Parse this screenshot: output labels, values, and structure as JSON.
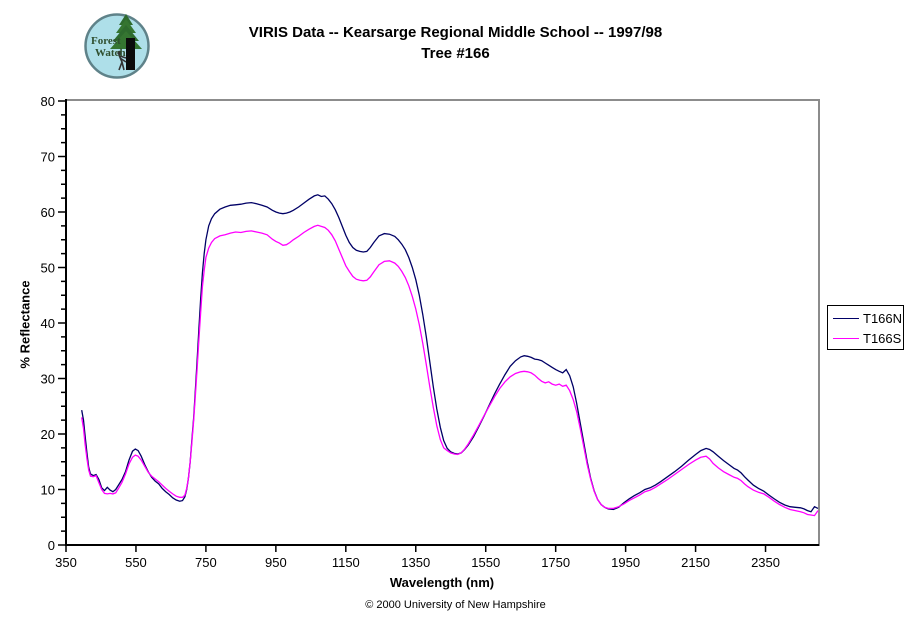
{
  "logo": {
    "line1": "Forest",
    "line2": "Watch"
  },
  "title": {
    "line1": "VIRIS Data -- Kearsarge Regional Middle School -- 1997/98",
    "line2": "Tree #166"
  },
  "footer": "© 2000 University of New Hampshire",
  "chart_data": {
    "type": "line",
    "title": "VIRIS Data -- Kearsarge Regional Middle School -- 1997/98  Tree #166",
    "xlabel": "Wavelength (nm)",
    "ylabel": "% Reflectance",
    "xlim": [
      350,
      2500
    ],
    "ylim": [
      0,
      80
    ],
    "xticks": [
      350,
      550,
      750,
      950,
      1150,
      1350,
      1550,
      1750,
      1950,
      2150,
      2350
    ],
    "yticks": [
      0,
      10,
      20,
      30,
      40,
      50,
      60,
      70,
      80
    ],
    "y_minor_step": 2.5,
    "grid": false,
    "legend_position": "right-outside",
    "colors": {
      "axis": "#000000",
      "border": "#8c8c8c"
    },
    "x": [
      395,
      400,
      405,
      410,
      415,
      420,
      428,
      436,
      444,
      452,
      460,
      468,
      476,
      484,
      492,
      500,
      510,
      520,
      530,
      540,
      548,
      556,
      565,
      575,
      585,
      595,
      605,
      615,
      625,
      635,
      645,
      655,
      665,
      675,
      683,
      690,
      695,
      700,
      705,
      710,
      715,
      720,
      725,
      730,
      735,
      740,
      745,
      750,
      758,
      766,
      775,
      790,
      805,
      820,
      835,
      850,
      865,
      880,
      895,
      910,
      925,
      940,
      950,
      960,
      970,
      980,
      990,
      1000,
      1015,
      1030,
      1045,
      1060,
      1070,
      1080,
      1090,
      1100,
      1110,
      1120,
      1130,
      1140,
      1150,
      1160,
      1170,
      1180,
      1190,
      1200,
      1210,
      1220,
      1230,
      1245,
      1260,
      1275,
      1290,
      1300,
      1310,
      1320,
      1330,
      1340,
      1350,
      1360,
      1370,
      1380,
      1390,
      1400,
      1410,
      1420,
      1430,
      1440,
      1450,
      1460,
      1470,
      1480,
      1490,
      1500,
      1515,
      1530,
      1545,
      1560,
      1575,
      1590,
      1605,
      1620,
      1635,
      1650,
      1660,
      1670,
      1680,
      1690,
      1700,
      1710,
      1720,
      1730,
      1740,
      1750,
      1760,
      1770,
      1780,
      1790,
      1800,
      1810,
      1820,
      1830,
      1840,
      1850,
      1860,
      1870,
      1880,
      1890,
      1900,
      1915,
      1930,
      1945,
      1960,
      1975,
      1990,
      2005,
      2020,
      2035,
      2050,
      2070,
      2090,
      2110,
      2130,
      2150,
      2165,
      2180,
      2190,
      2200,
      2215,
      2230,
      2245,
      2260,
      2270,
      2280,
      2290,
      2300,
      2315,
      2330,
      2345,
      2360,
      2375,
      2390,
      2405,
      2420,
      2435,
      2450,
      2460,
      2470,
      2480,
      2490,
      2500
    ],
    "series": [
      {
        "name": "T166N",
        "color": "#000066",
        "values": [
          24.3,
          22.5,
          19.5,
          16.5,
          14.0,
          12.8,
          12.5,
          12.7,
          11.8,
          10.3,
          9.8,
          10.4,
          9.9,
          9.6,
          10.0,
          10.8,
          11.8,
          13.2,
          15.3,
          16.9,
          17.3,
          17.0,
          16.0,
          14.5,
          13.2,
          12.2,
          11.5,
          11.0,
          10.2,
          9.6,
          9.1,
          8.5,
          8.1,
          7.9,
          8.0,
          8.7,
          10.0,
          12.0,
          15.0,
          19.0,
          23.0,
          28.0,
          33.5,
          39.0,
          44.5,
          49.0,
          52.5,
          55.0,
          57.5,
          58.8,
          59.7,
          60.5,
          60.9,
          61.2,
          61.3,
          61.4,
          61.6,
          61.7,
          61.5,
          61.2,
          60.9,
          60.3,
          60.0,
          59.8,
          59.7,
          59.8,
          60.0,
          60.3,
          60.9,
          61.6,
          62.3,
          62.9,
          63.1,
          62.8,
          62.9,
          62.3,
          61.5,
          60.4,
          59.0,
          57.4,
          55.8,
          54.5,
          53.6,
          53.1,
          52.9,
          52.8,
          52.9,
          53.6,
          54.5,
          55.7,
          56.1,
          56.0,
          55.6,
          55.0,
          54.2,
          53.2,
          51.8,
          50.0,
          47.8,
          45.0,
          41.5,
          37.5,
          33.0,
          28.5,
          24.5,
          21.2,
          18.8,
          17.4,
          16.8,
          16.5,
          16.4,
          16.6,
          17.2,
          18.0,
          19.5,
          21.3,
          23.2,
          25.2,
          27.2,
          29.0,
          30.7,
          32.2,
          33.2,
          33.9,
          34.1,
          34.0,
          33.8,
          33.5,
          33.4,
          33.2,
          32.8,
          32.4,
          32.0,
          31.6,
          31.3,
          31.0,
          31.6,
          30.5,
          28.5,
          25.5,
          22.0,
          18.5,
          15.0,
          12.0,
          9.8,
          8.2,
          7.3,
          6.8,
          6.5,
          6.4,
          6.8,
          7.6,
          8.3,
          8.9,
          9.4,
          10.0,
          10.3,
          10.8,
          11.4,
          12.3,
          13.2,
          14.2,
          15.3,
          16.3,
          17.0,
          17.4,
          17.2,
          16.8,
          16.0,
          15.2,
          14.5,
          13.8,
          13.5,
          13.0,
          12.3,
          11.7,
          10.8,
          10.2,
          9.7,
          9.0,
          8.3,
          7.7,
          7.2,
          6.9,
          6.8,
          6.7,
          6.5,
          6.2,
          6.0,
          6.9,
          6.6
        ]
      },
      {
        "name": "T166S",
        "color": "#ff00ff",
        "values": [
          23.0,
          21.0,
          18.0,
          15.5,
          13.5,
          12.4,
          12.3,
          12.5,
          11.2,
          10.0,
          9.3,
          9.2,
          9.3,
          9.2,
          9.4,
          10.2,
          11.3,
          12.8,
          14.6,
          15.8,
          16.2,
          16.0,
          15.3,
          14.2,
          13.1,
          12.4,
          11.9,
          11.4,
          10.8,
          10.2,
          9.7,
          9.2,
          8.8,
          8.6,
          8.6,
          9.0,
          10.2,
          12.0,
          15.0,
          18.5,
          22.5,
          27.0,
          32.0,
          37.0,
          42.0,
          46.5,
          49.5,
          51.8,
          53.5,
          54.5,
          55.2,
          55.7,
          55.9,
          56.2,
          56.4,
          56.3,
          56.5,
          56.6,
          56.4,
          56.2,
          55.9,
          55.1,
          54.7,
          54.4,
          54.0,
          54.1,
          54.5,
          55.0,
          55.6,
          56.3,
          56.9,
          57.4,
          57.6,
          57.4,
          57.2,
          56.7,
          55.9,
          54.8,
          53.3,
          51.8,
          50.3,
          49.3,
          48.4,
          47.9,
          47.7,
          47.6,
          47.7,
          48.3,
          49.2,
          50.5,
          51.1,
          51.2,
          50.8,
          50.2,
          49.3,
          48.2,
          46.7,
          44.8,
          42.5,
          39.7,
          36.3,
          32.5,
          28.5,
          24.8,
          21.5,
          19.0,
          17.5,
          17.0,
          16.6,
          16.4,
          16.3,
          16.6,
          17.3,
          18.2,
          19.8,
          21.5,
          23.3,
          25.0,
          26.7,
          28.2,
          29.4,
          30.3,
          30.9,
          31.2,
          31.3,
          31.2,
          31.0,
          30.6,
          30.0,
          29.5,
          29.2,
          29.4,
          29.0,
          28.8,
          29.0,
          28.6,
          28.8,
          27.8,
          26.2,
          24.0,
          21.0,
          17.8,
          14.5,
          11.8,
          9.7,
          8.2,
          7.3,
          6.8,
          6.6,
          6.6,
          6.9,
          7.4,
          8.0,
          8.5,
          9.0,
          9.6,
          9.9,
          10.4,
          11.0,
          11.8,
          12.7,
          13.6,
          14.5,
          15.3,
          15.8,
          16.0,
          15.5,
          14.7,
          13.9,
          13.2,
          12.7,
          12.2,
          12.0,
          11.6,
          11.0,
          10.5,
          9.9,
          9.5,
          9.2,
          8.6,
          7.9,
          7.3,
          6.8,
          6.4,
          6.2,
          6.0,
          5.8,
          5.5,
          5.4,
          5.3,
          6.2
        ]
      }
    ]
  }
}
